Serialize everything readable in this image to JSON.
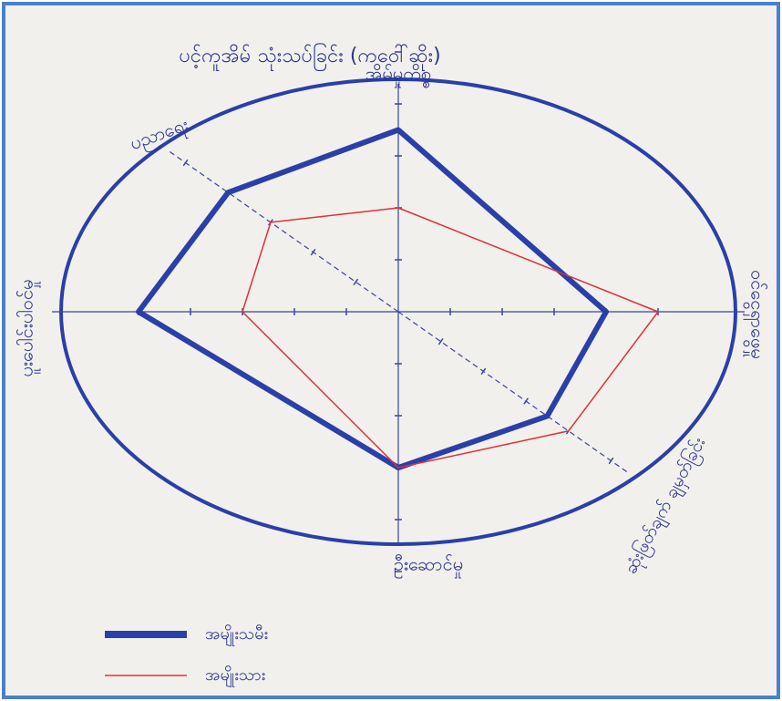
{
  "chart_data": {
    "type": "radar",
    "title": "ပင့်ကူအိမ် သုံးသပ်ခြင်း (ကဝေါ်ဆိုး)",
    "categories": [
      "အိမ်မှုကိစ္စ",
      "ဝင်ငွေရှာဖွေမှု",
      "ဆုံးဖြတ်ချက် ချမှတ်ခြင်း",
      "ဦးဆောင်မှု",
      "ပူးပေါင်းပါဝင်မှု",
      "ပညာရေး"
    ],
    "series": [
      {
        "name": "အမျိုးသမီး",
        "color": "#2a3fa8",
        "values": [
          3.5,
          4,
          3.5,
          3,
          5,
          4
        ]
      },
      {
        "name": "အမျိုးသား",
        "color": "#e0303a",
        "values": [
          2,
          5,
          4,
          3,
          3,
          3
        ]
      }
    ],
    "rlim": [
      0,
      6
    ],
    "rticks": [
      1,
      2,
      3,
      4,
      5
    ]
  }
}
